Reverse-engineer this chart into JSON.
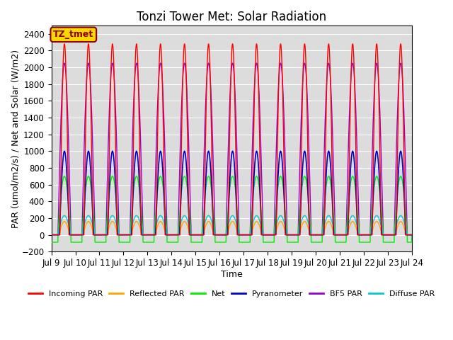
{
  "title": "Tonzi Tower Met: Solar Radiation",
  "xlabel": "Time",
  "ylabel": "PAR (umol/m2/s) / Net and Solar (W/m2)",
  "ylim": [
    -200,
    2500
  ],
  "yticks": [
    -200,
    0,
    200,
    400,
    600,
    800,
    1000,
    1200,
    1400,
    1600,
    1800,
    2000,
    2200,
    2400
  ],
  "xlim_start": 0,
  "xlim_end": 360,
  "xtick_positions": [
    0,
    24,
    48,
    72,
    96,
    120,
    144,
    168,
    192,
    216,
    240,
    264,
    288,
    312,
    336,
    360
  ],
  "xtick_labels": [
    "Jul 9",
    "Jul 10",
    "Jul 11",
    "Jul 12",
    "Jul 13",
    "Jul 14",
    "Jul 15",
    "Jul 16",
    "Jul 17",
    "Jul 18",
    "Jul 19",
    "Jul 20",
    "Jul 21",
    "Jul 22",
    "Jul 23",
    "Jul 24"
  ],
  "annotation_text": "TZ_tmet",
  "annotation_color": "#8B0000",
  "annotation_bg": "#FFD700",
  "annotation_border": "#8B0000",
  "background_color": "#DCDCDC",
  "series_colors": [
    "#FF0000",
    "#FFA500",
    "#00EE00",
    "#0000CC",
    "#9900CC",
    "#00CCCC"
  ],
  "series_names": [
    "Incoming PAR",
    "Reflected PAR",
    "Net",
    "Pyranometer",
    "BF5 PAR",
    "Diffuse PAR"
  ],
  "peaks": [
    2280,
    160,
    700,
    1000,
    2050,
    230
  ],
  "day_start": 6.0,
  "day_end": 20.0,
  "num_days": 15,
  "net_night_value": -110,
  "title_fontsize": 12,
  "axis_fontsize": 9,
  "tick_fontsize": 8.5
}
